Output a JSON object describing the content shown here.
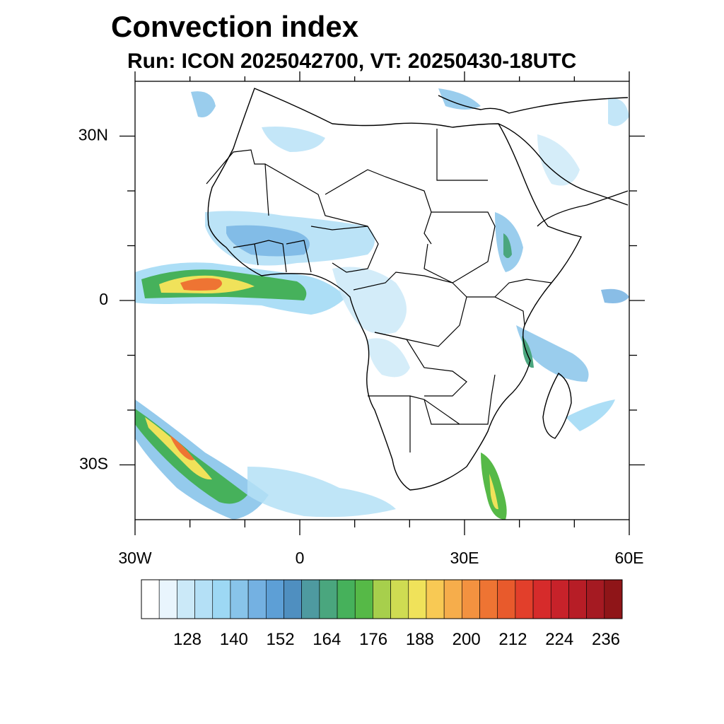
{
  "title": "Convection index",
  "subtitle": "Run: ICON 2025042700,  VT: 20250430-18UTC",
  "map": {
    "lon_range": [
      -30,
      60
    ],
    "lat_range": [
      -40,
      40
    ],
    "x_ticks": [
      {
        "value": -30,
        "label": "30W"
      },
      {
        "value": 0,
        "label": "0"
      },
      {
        "value": 30,
        "label": "30E"
      },
      {
        "value": 60,
        "label": "60E"
      }
    ],
    "y_ticks": [
      {
        "value": 30,
        "label": "30N"
      },
      {
        "value": 0,
        "label": "0"
      },
      {
        "value": -30,
        "label": "30S"
      }
    ],
    "minor_x": [
      -20,
      -10,
      10,
      20,
      40,
      50
    ],
    "minor_y": [
      20,
      10,
      -10,
      -20
    ]
  },
  "colorbar": {
    "labels": [
      "128",
      "140",
      "152",
      "164",
      "176",
      "188",
      "200",
      "212",
      "224",
      "236"
    ],
    "colors": [
      "#ffffff",
      "#e9f5fd",
      "#cbe9f8",
      "#b4e0f6",
      "#9dd8f4",
      "#88c4ea",
      "#74b1e2",
      "#5d9fd6",
      "#4f8fc0",
      "#4e9aa0",
      "#4aa67e",
      "#46b15b",
      "#56b947",
      "#a7cf4c",
      "#cfdc52",
      "#f0e25a",
      "#f8c954",
      "#f6ad4b",
      "#f39240",
      "#ee7433",
      "#e85a2c",
      "#e23f2b",
      "#d62b2b",
      "#c7222a",
      "#b71d26",
      "#a51a22",
      "#8f1518"
    ]
  },
  "chart_data": {
    "type": "heatmap",
    "title": "Convection index",
    "subtitle": "Run: ICON 2025042700,  VT: 20250430-18UTC",
    "x_range": [
      -30,
      60
    ],
    "y_range": [
      -40,
      40
    ],
    "colorbar_levels": [
      128,
      140,
      152,
      164,
      176,
      188,
      200,
      212,
      224,
      236
    ]
  }
}
